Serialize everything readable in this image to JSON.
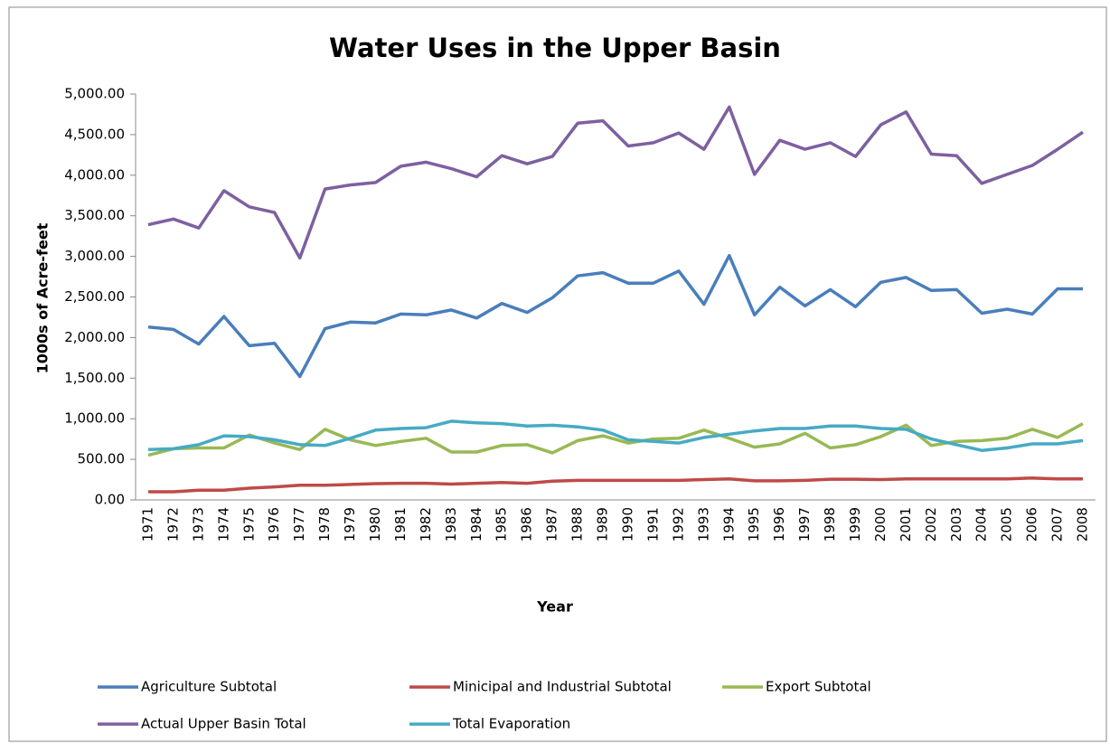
{
  "chart_data": {
    "type": "line",
    "title": "Water Uses in the Upper Basin",
    "x_label": "Year",
    "y_label": "1000s of Acre-feet",
    "categories": [
      "1971",
      "1972",
      "1973",
      "1974",
      "1975",
      "1976",
      "1977",
      "1978",
      "1979",
      "1980",
      "1981",
      "1982",
      "1983",
      "1984",
      "1985",
      "1986",
      "1987",
      "1988",
      "1989",
      "1990",
      "1991",
      "1992",
      "1993",
      "1994",
      "1995",
      "1996",
      "1997",
      "1998",
      "1999",
      "2000",
      "2001",
      "2002",
      "2003",
      "2004",
      "2005",
      "2006",
      "2007",
      "2008"
    ],
    "series": [
      {
        "name": "Agriculture Subtotal",
        "color": "#4a7ebb",
        "values": [
          2130,
          2100,
          1920,
          2260,
          1900,
          1930,
          1520,
          2110,
          2190,
          2180,
          2290,
          2280,
          2340,
          2240,
          2420,
          2310,
          2490,
          2760,
          2800,
          2670,
          2670,
          2820,
          2410,
          3010,
          2280,
          2620,
          2390,
          2590,
          2380,
          2680,
          2740,
          2580,
          2590,
          2300,
          2350,
          2290,
          2600,
          2600
        ]
      },
      {
        "name": "Minicipal and Industrial Subtotal",
        "color": "#be4b48",
        "values": [
          100,
          100,
          120,
          120,
          145,
          160,
          180,
          180,
          190,
          200,
          205,
          205,
          195,
          205,
          215,
          205,
          230,
          240,
          240,
          240,
          240,
          240,
          250,
          260,
          235,
          235,
          240,
          255,
          255,
          250,
          260,
          260,
          260,
          260,
          260,
          270,
          260,
          260
        ]
      },
      {
        "name": "Export Subtotal",
        "color": "#98b954",
        "values": [
          550,
          630,
          640,
          640,
          800,
          700,
          620,
          870,
          740,
          670,
          720,
          760,
          590,
          590,
          670,
          680,
          580,
          730,
          790,
          700,
          750,
          760,
          860,
          760,
          650,
          690,
          820,
          640,
          680,
          780,
          920,
          670,
          720,
          730,
          760,
          870,
          770,
          940
        ]
      },
      {
        "name": "Actual Upper Basin Total",
        "color": "#7d60a0",
        "values": [
          3390,
          3460,
          3350,
          3810,
          3610,
          3540,
          2980,
          3830,
          3880,
          3910,
          4110,
          4160,
          4080,
          3980,
          4240,
          4140,
          4230,
          4640,
          4670,
          4360,
          4400,
          4520,
          4320,
          4840,
          4010,
          4430,
          4320,
          4400,
          4230,
          4620,
          4780,
          4260,
          4240,
          3900,
          4010,
          4120,
          4320,
          4530
        ]
      },
      {
        "name": "Total Evaporation",
        "color": "#46aac5",
        "values": [
          620,
          630,
          680,
          790,
          780,
          740,
          680,
          670,
          760,
          860,
          880,
          890,
          970,
          950,
          940,
          910,
          920,
          900,
          860,
          740,
          720,
          700,
          770,
          810,
          850,
          880,
          880,
          910,
          910,
          880,
          870,
          750,
          680,
          610,
          640,
          690,
          690,
          730
        ]
      }
    ],
    "ylim": [
      0,
      5000
    ],
    "yticks": [
      {
        "value": 0,
        "label": "0.00"
      },
      {
        "value": 500,
        "label": "500.00"
      },
      {
        "value": 1000,
        "label": "1,000.00"
      },
      {
        "value": 1500,
        "label": "1,500.00"
      },
      {
        "value": 2000,
        "label": "2,000.00"
      },
      {
        "value": 2500,
        "label": "2,500.00"
      },
      {
        "value": 3000,
        "label": "3,000.00"
      },
      {
        "value": 3500,
        "label": "3,500.00"
      },
      {
        "value": 4000,
        "label": "4,000.00"
      },
      {
        "value": 4500,
        "label": "4,500.00"
      },
      {
        "value": 5000,
        "label": "5,000.00"
      }
    ],
    "grid": false,
    "legend": "bottom"
  }
}
